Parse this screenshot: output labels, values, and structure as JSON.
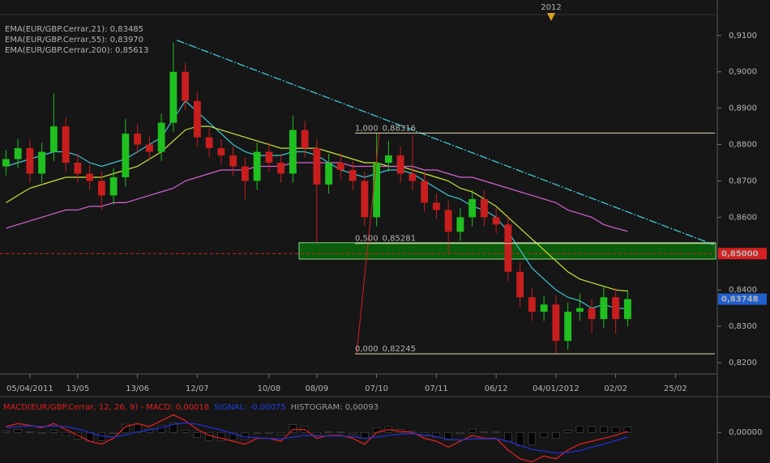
{
  "chart_data": [
    {
      "type": "candlestick",
      "period_marker": "2012",
      "categories": [
        null,
        null,
        "05/04/2011",
        null,
        null,
        null,
        "13/05",
        null,
        null,
        null,
        null,
        "13/06",
        null,
        null,
        null,
        null,
        "12/07",
        null,
        null,
        null,
        null,
        null,
        "10/08",
        null,
        null,
        null,
        "08/09",
        null,
        null,
        null,
        null,
        "07/10",
        null,
        null,
        null,
        null,
        "07/11",
        null,
        null,
        null,
        null,
        "06/12",
        null,
        null,
        null,
        null,
        "04/01/2012",
        null,
        null,
        null,
        null,
        "02/02",
        null,
        null,
        null,
        null,
        "25/02",
        null,
        null,
        null
      ],
      "open": [
        0.874,
        0.876,
        0.879,
        0.872,
        0.878,
        0.885,
        0.875,
        0.872,
        0.87,
        0.866,
        0.871,
        0.883,
        0.88,
        0.878,
        0.886,
        0.9,
        0.892,
        0.882,
        0.879,
        0.877,
        0.874,
        0.87,
        0.878,
        0.875,
        0.872,
        0.884,
        0.879,
        0.869,
        0.875,
        0.873,
        0.87,
        0.86,
        0.875,
        0.877,
        0.872,
        0.87,
        0.864,
        0.862,
        0.856,
        0.86,
        0.865,
        0.86,
        0.858,
        0.845,
        0.838,
        0.834,
        0.836,
        0.826,
        0.834,
        0.835,
        0.832,
        0.838,
        0.832,
        null,
        null,
        null,
        null,
        null,
        null,
        null
      ],
      "high": [
        0.8785,
        0.8815,
        0.8815,
        0.8805,
        0.894,
        0.8875,
        0.8775,
        0.8745,
        0.8725,
        0.8735,
        0.887,
        0.8855,
        0.8825,
        0.8885,
        0.908,
        0.9025,
        0.8945,
        0.8845,
        0.8815,
        0.8795,
        0.8765,
        0.8805,
        0.8805,
        0.8775,
        0.888,
        0.8865,
        0.8815,
        0.8775,
        0.8775,
        0.8755,
        0.8725,
        0.8831,
        0.881,
        0.8795,
        0.8825,
        0.8725,
        0.8665,
        0.8645,
        0.8625,
        0.8675,
        0.8675,
        0.8625,
        0.8605,
        0.8475,
        0.8405,
        0.8385,
        0.8385,
        0.8365,
        0.839,
        0.8375,
        0.841,
        0.8405,
        0.84,
        null,
        null,
        null,
        null,
        null,
        null,
        null
      ],
      "low": [
        0.8715,
        0.8735,
        0.8695,
        0.8695,
        0.8755,
        0.8725,
        0.8695,
        0.8675,
        0.862,
        0.8635,
        0.8685,
        0.8775,
        0.8755,
        0.8755,
        0.8835,
        0.8895,
        0.8795,
        0.8765,
        0.8745,
        0.8715,
        0.865,
        0.8675,
        0.8725,
        0.8695,
        0.8695,
        0.8765,
        0.853,
        0.8665,
        0.8705,
        0.8675,
        0.8575,
        0.8575,
        0.8725,
        0.8695,
        0.8675,
        0.8615,
        0.8595,
        0.85,
        0.8535,
        0.8575,
        0.8575,
        0.8555,
        0.8425,
        0.8355,
        0.8315,
        0.8315,
        0.8225,
        0.8235,
        0.8315,
        0.828,
        0.8295,
        0.828,
        0.83,
        null,
        null,
        null,
        null,
        null,
        null,
        null
      ],
      "close": [
        0.876,
        0.879,
        0.872,
        0.878,
        0.885,
        0.875,
        0.872,
        0.87,
        0.866,
        0.871,
        0.883,
        0.88,
        0.878,
        0.886,
        0.9,
        0.892,
        0.882,
        0.879,
        0.877,
        0.874,
        0.87,
        0.878,
        0.875,
        0.872,
        0.884,
        0.879,
        0.869,
        0.875,
        0.873,
        0.87,
        0.86,
        0.875,
        0.877,
        0.872,
        0.87,
        0.864,
        0.862,
        0.856,
        0.86,
        0.865,
        0.86,
        0.858,
        0.845,
        0.838,
        0.834,
        0.836,
        0.826,
        0.834,
        0.835,
        0.832,
        0.838,
        0.832,
        0.83748,
        null,
        null,
        null,
        null,
        null,
        null,
        null
      ],
      "up_color": "#1fc01f",
      "down_color": "#c81e1e",
      "series": [
        {
          "name": "EMA(EUR/GBP.Cerrar,21): 0,83485",
          "color": "#3ec6d6",
          "values": [
            0.874,
            0.875,
            0.876,
            0.877,
            0.878,
            0.878,
            0.877,
            0.875,
            0.874,
            0.875,
            0.876,
            0.878,
            0.88,
            0.882,
            0.887,
            0.892,
            0.889,
            0.886,
            0.883,
            0.88,
            0.878,
            0.877,
            0.877,
            0.877,
            0.878,
            0.878,
            0.877,
            0.875,
            0.873,
            0.872,
            0.871,
            0.872,
            0.873,
            0.873,
            0.872,
            0.87,
            0.868,
            0.866,
            0.865,
            0.863,
            0.862,
            0.86,
            0.856,
            0.851,
            0.846,
            0.843,
            0.84,
            0.838,
            0.837,
            0.835,
            0.836,
            0.835,
            0.83485,
            null,
            null,
            null,
            null,
            null,
            null,
            null
          ]
        },
        {
          "name": "EMA(EUR/GBP.Cerrar,55): 0,83970",
          "color": "#c8e63c",
          "values": [
            0.864,
            0.866,
            0.868,
            0.869,
            0.87,
            0.871,
            0.871,
            0.871,
            0.871,
            0.872,
            0.873,
            0.874,
            0.876,
            0.878,
            0.881,
            0.884,
            0.885,
            0.885,
            0.884,
            0.883,
            0.882,
            0.881,
            0.88,
            0.879,
            0.879,
            0.879,
            0.879,
            0.878,
            0.877,
            0.876,
            0.875,
            0.875,
            0.874,
            0.874,
            0.873,
            0.872,
            0.871,
            0.87,
            0.868,
            0.867,
            0.865,
            0.863,
            0.86,
            0.857,
            0.854,
            0.851,
            0.848,
            0.845,
            0.843,
            0.842,
            0.841,
            0.84,
            0.8397,
            null,
            null,
            null,
            null,
            null,
            null,
            null
          ]
        },
        {
          "name": "EMA(EUR/GBP.Cerrar,200): 0,85613",
          "color": "#d464d4",
          "values": [
            0.857,
            0.858,
            0.859,
            0.86,
            0.861,
            0.862,
            0.862,
            0.863,
            0.863,
            0.864,
            0.864,
            0.865,
            0.866,
            0.867,
            0.868,
            0.87,
            0.871,
            0.872,
            0.873,
            0.873,
            0.873,
            0.874,
            0.874,
            0.874,
            0.875,
            0.875,
            0.875,
            0.875,
            0.875,
            0.874,
            0.874,
            0.874,
            0.874,
            0.874,
            0.874,
            0.873,
            0.873,
            0.872,
            0.871,
            0.871,
            0.87,
            0.869,
            0.868,
            0.867,
            0.866,
            0.865,
            0.864,
            0.862,
            0.861,
            0.86,
            0.858,
            0.857,
            0.85613,
            null,
            null,
            null,
            null,
            null,
            null,
            null
          ]
        }
      ],
      "trendline": {
        "values": [
          0.9087,
          0.8525
        ],
        "color": "#3ec6d6"
      },
      "zone": {
        "values": [
          0.8485,
          0.853
        ],
        "color": "#0b5c0b"
      },
      "fib_levels": [
        {
          "ratio": {
            "value": 1,
            "label": "1,000"
          },
          "price": {
            "value": 0.88316,
            "label": "0,88316"
          }
        },
        {
          "ratio": {
            "value": 0.5,
            "label": "0,500"
          },
          "price": {
            "value": 0.85281,
            "label": "0,85281"
          }
        },
        {
          "ratio": {
            "value": 0,
            "label": "0,000"
          },
          "price": {
            "value": 0.82245,
            "label": "0,82245"
          }
        }
      ],
      "price_lines": [
        {
          "value": 0.85,
          "label": "0,85000",
          "color": "#d42020"
        },
        {
          "value": 0.83748,
          "label": "0,83748",
          "color": "#1f5fd0"
        }
      ],
      "ylim": [
        0.8169,
        0.9153
      ],
      "yticks": [
        {
          "value": 0.82,
          "label": "0,8200"
        },
        {
          "value": 0.83,
          "label": "0,8300"
        },
        {
          "value": 0.84,
          "label": "0,8400"
        },
        {
          "value": 0.85,
          "label": "0,8500"
        },
        {
          "value": 0.86,
          "label": "0,8600"
        },
        {
          "value": 0.87,
          "label": "0,8700"
        },
        {
          "value": 0.88,
          "label": "0,8800"
        },
        {
          "value": 0.89,
          "label": "0,8900"
        },
        {
          "value": 0.9,
          "label": "0,9000"
        },
        {
          "value": 0.91,
          "label": "0,9100"
        }
      ]
    },
    {
      "type": "macd",
      "title": "MACD(EUR/GBP.Cerrar, 12, 26, 9) - MACD: 0,00018",
      "signal_title": "SIGNAL: -0,00075",
      "histogram_title": "HISTOGRAM: 0,00093",
      "series": [
        {
          "color": "#e02020",
          "values": [
            0.001,
            0.0015,
            0.0012,
            0.0008,
            0.0015,
            0.0005,
            -0.0005,
            -0.0015,
            -0.002,
            -0.001,
            0.001,
            0.0015,
            0.001,
            0.002,
            0.003,
            0.002,
            0.0005,
            -0.0005,
            -0.001,
            -0.0015,
            -0.002,
            -0.001,
            -0.001,
            -0.0015,
            0.0005,
            0.0005,
            -0.001,
            -0.0005,
            -0.0005,
            -0.001,
            -0.002,
            0.0,
            0.0005,
            0.0002,
            0.0,
            -0.001,
            -0.0015,
            -0.0025,
            -0.0015,
            -0.0005,
            -0.001,
            -0.001,
            -0.003,
            -0.0045,
            -0.005,
            -0.004,
            -0.0045,
            -0.003,
            -0.002,
            -0.0015,
            -0.001,
            -0.0005,
            0.00018,
            null,
            null,
            null,
            null,
            null,
            null,
            null
          ]
        },
        {
          "color": "#2030d0",
          "values": [
            0.0008,
            0.001,
            0.0011,
            0.001,
            0.0011,
            0.001,
            0.0006,
            0.0,
            -0.0006,
            -0.0008,
            -0.0004,
            0.0001,
            0.0004,
            0.0008,
            0.0014,
            0.0016,
            0.0014,
            0.0009,
            0.0004,
            -0.0002,
            -0.0008,
            -0.0009,
            -0.001,
            -0.0011,
            -0.0008,
            -0.0005,
            -0.0006,
            -0.0006,
            -0.0006,
            -0.0007,
            -0.001,
            -0.0008,
            -0.0005,
            -0.0003,
            -0.0002,
            -0.0004,
            -0.0007,
            -0.0012,
            -0.0013,
            -0.0011,
            -0.0011,
            -0.0011,
            -0.0015,
            -0.0022,
            -0.0029,
            -0.0032,
            -0.0035,
            -0.0034,
            -0.0031,
            -0.0025,
            -0.002,
            -0.0014,
            -0.00075,
            null,
            null,
            null,
            null,
            null,
            null,
            null
          ]
        }
      ],
      "histogram": [
        0.0002,
        0.0005,
        0.0001,
        -0.0002,
        0.0004,
        -0.0005,
        -0.0011,
        -0.0015,
        -0.0014,
        -0.0002,
        0.0014,
        0.0014,
        0.0006,
        0.0012,
        0.0016,
        0.0004,
        -0.0009,
        -0.0014,
        -0.0014,
        -0.0013,
        -0.0012,
        -0.0001,
        0.0,
        -0.0004,
        0.0013,
        0.001,
        -0.0004,
        0.0001,
        0.0001,
        -0.0003,
        -0.001,
        0.0008,
        0.001,
        0.0005,
        0.0002,
        -0.0006,
        -0.0008,
        -0.0013,
        -0.0002,
        0.0006,
        0.0001,
        0.0001,
        -0.0015,
        -0.0023,
        -0.0021,
        -0.0008,
        -0.001,
        0.0004,
        0.0011,
        0.001,
        0.001,
        0.0009,
        0.00093,
        null,
        null,
        null,
        null,
        null,
        null,
        null
      ],
      "ylim": [
        -0.0052,
        0.0054
      ],
      "yticks": [
        {
          "value": 0,
          "label": "0,00000"
        }
      ]
    }
  ]
}
